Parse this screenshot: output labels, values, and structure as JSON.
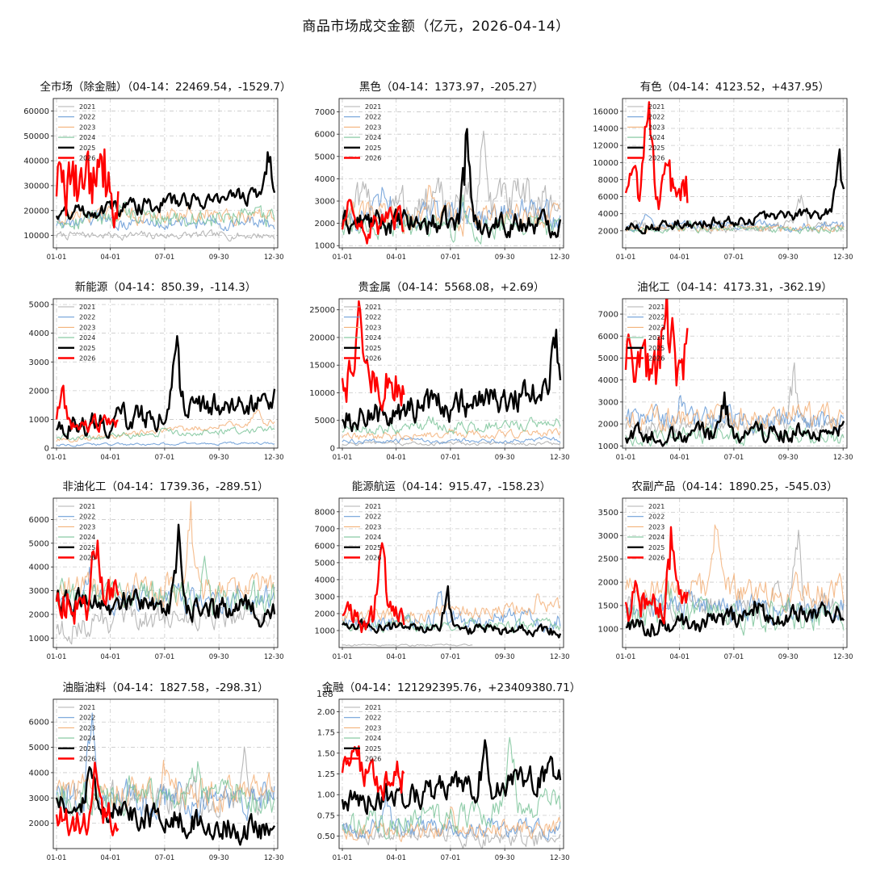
{
  "title": "商品市场成交金额（亿元，2026-04-14）",
  "x_tick_labels": [
    "01-01",
    "04-01",
    "07-01",
    "09-30",
    "12-30"
  ],
  "legend": [
    "2021",
    "2022",
    "2023",
    "2024",
    "2025",
    "2026"
  ],
  "series_colors": {
    "2021": "#b0b0b0",
    "2022": "#6fa0d8",
    "2023": "#f3b27a",
    "2024": "#7cc49a",
    "2025": "#000000",
    "2026": "#ff0000"
  },
  "chart_data": [
    {
      "type": "line",
      "title": "全市场（除金融）（04-14：22469.54，-1529.7）",
      "ylim": [
        5000,
        65000
      ],
      "yticks": [
        10000,
        20000,
        30000,
        40000,
        50000,
        60000
      ],
      "ytick_labels": [
        "10000",
        "20000",
        "30000",
        "40000",
        "50000",
        "60000"
      ],
      "sci_label": "",
      "series": [
        {
          "name": "2021",
          "base": 10000,
          "amp": 1500,
          "drift": 0,
          "spike_pos": 0.1,
          "spike_h": 0
        },
        {
          "name": "2022",
          "base": 15000,
          "amp": 2500,
          "drift": 0,
          "spike_pos": 0.2,
          "spike_h": 5000
        },
        {
          "name": "2023",
          "base": 18000,
          "amp": 3000,
          "drift": 0,
          "spike_pos": 0.6,
          "spike_h": 4000
        },
        {
          "name": "2024",
          "base": 17000,
          "amp": 3500,
          "drift": 0,
          "spike_pos": 0.3,
          "spike_h": 6000
        },
        {
          "name": "2025",
          "base": 19000,
          "amp": 3000,
          "drift": 8000,
          "spike_pos": 0.97,
          "spike_h": 20000
        },
        {
          "name": "2026",
          "base": 30000,
          "amp": 12000,
          "drift": -8000,
          "spike_pos": 0.2,
          "spike_h": 30000,
          "end": 0.29
        }
      ]
    },
    {
      "type": "line",
      "title": "黑色（04-14：1373.97，-205.27）",
      "ylim": [
        900,
        7600
      ],
      "yticks": [
        1000,
        2000,
        3000,
        4000,
        5000,
        6000,
        7000
      ],
      "ytick_labels": [
        "1000",
        "2000",
        "3000",
        "4000",
        "5000",
        "6000",
        "7000"
      ],
      "sci_label": "",
      "series": [
        {
          "name": "2021",
          "base": 2600,
          "amp": 900,
          "drift": 400,
          "spike_pos": 0.65,
          "spike_h": 4000
        },
        {
          "name": "2022",
          "base": 2400,
          "amp": 600,
          "drift": 0,
          "spike_pos": 0.2,
          "spike_h": 1800
        },
        {
          "name": "2023",
          "base": 2200,
          "amp": 600,
          "drift": 0,
          "spike_pos": 0.4,
          "spike_h": 1500
        },
        {
          "name": "2024",
          "base": 1900,
          "amp": 500,
          "drift": 0,
          "spike_pos": 0.55,
          "spike_h": 1200
        },
        {
          "name": "2025",
          "base": 2000,
          "amp": 500,
          "drift": 0,
          "spike_pos": 0.57,
          "spike_h": 5500
        },
        {
          "name": "2026",
          "base": 1900,
          "amp": 600,
          "drift": 0,
          "spike_pos": 0.04,
          "spike_h": 1900,
          "end": 0.29
        }
      ]
    },
    {
      "type": "line",
      "title": "有色（04-14：4123.52，+437.95）",
      "ylim": [
        0,
        17500
      ],
      "yticks": [
        2000,
        4000,
        6000,
        8000,
        10000,
        12000,
        14000,
        16000
      ],
      "ytick_labels": [
        "2000",
        "4000",
        "6000",
        "8000",
        "10000",
        "12000",
        "14000",
        "16000"
      ],
      "sci_label": "",
      "series": [
        {
          "name": "2021",
          "base": 2500,
          "amp": 600,
          "drift": 0,
          "spike_pos": 0.8,
          "spike_h": 4000
        },
        {
          "name": "2022",
          "base": 2600,
          "amp": 500,
          "drift": 0,
          "spike_pos": 0.1,
          "spike_h": 1500
        },
        {
          "name": "2023",
          "base": 2300,
          "amp": 400,
          "drift": 0,
          "spike_pos": 0.5,
          "spike_h": 800
        },
        {
          "name": "2024",
          "base": 2200,
          "amp": 400,
          "drift": 0,
          "spike_pos": 0.3,
          "spike_h": 700
        },
        {
          "name": "2025",
          "base": 2200,
          "amp": 600,
          "drift": 2000,
          "spike_pos": 0.98,
          "spike_h": 8000
        },
        {
          "name": "2026",
          "base": 7000,
          "amp": 2500,
          "drift": -2500,
          "spike_pos": 0.1,
          "spike_h": 11000,
          "end": 0.29
        }
      ]
    },
    {
      "type": "line",
      "title": "新能源（04-14：850.39，-114.3）",
      "ylim": [
        0,
        5200
      ],
      "yticks": [
        0,
        1000,
        2000,
        3000,
        4000,
        5000
      ],
      "ytick_labels": [
        "0",
        "1000",
        "2000",
        "3000",
        "4000",
        "5000"
      ],
      "sci_label": "",
      "series": [
        {
          "name": "2021",
          "base": 0,
          "amp": 0,
          "drift": 0,
          "spike_pos": 0.1,
          "spike_h": 0
        },
        {
          "name": "2022",
          "base": 120,
          "amp": 40,
          "drift": 50,
          "spike_pos": 0.2,
          "spike_h": 0
        },
        {
          "name": "2023",
          "base": 250,
          "amp": 100,
          "drift": 700,
          "spike_pos": 0.92,
          "spike_h": 700
        },
        {
          "name": "2024",
          "base": 350,
          "amp": 100,
          "drift": 300,
          "spike_pos": 0.5,
          "spike_h": 200
        },
        {
          "name": "2025",
          "base": 700,
          "amp": 400,
          "drift": 1000,
          "spike_pos": 0.55,
          "spike_h": 3800
        },
        {
          "name": "2026",
          "base": 900,
          "amp": 250,
          "drift": -200,
          "spike_pos": 0.03,
          "spike_h": 1300,
          "end": 0.29
        }
      ]
    },
    {
      "type": "line",
      "title": "贵金属（04-14：5568.08，+2.69）",
      "ylim": [
        0,
        27000
      ],
      "yticks": [
        0,
        5000,
        10000,
        15000,
        20000,
        25000
      ],
      "ytick_labels": [
        "0",
        "5000",
        "10000",
        "15000",
        "20000",
        "25000"
      ],
      "sci_label": "",
      "series": [
        {
          "name": "2021",
          "base": 800,
          "amp": 300,
          "drift": 0,
          "spike_pos": 0.1,
          "spike_h": 0
        },
        {
          "name": "2022",
          "base": 1200,
          "amp": 400,
          "drift": 300,
          "spike_pos": 0.3,
          "spike_h": 500
        },
        {
          "name": "2023",
          "base": 2000,
          "amp": 700,
          "drift": 800,
          "spike_pos": 0.5,
          "spike_h": 1200
        },
        {
          "name": "2024",
          "base": 3000,
          "amp": 1000,
          "drift": 1500,
          "spike_pos": 0.4,
          "spike_h": 2500
        },
        {
          "name": "2025",
          "base": 5500,
          "amp": 2500,
          "drift": 5000,
          "spike_pos": 0.98,
          "spike_h": 13000
        },
        {
          "name": "2026",
          "base": 13000,
          "amp": 4000,
          "drift": -5000,
          "spike_pos": 0.08,
          "spike_h": 13000,
          "end": 0.29
        }
      ]
    },
    {
      "type": "line",
      "title": "油化工（04-14：4173.31，-362.19）",
      "ylim": [
        900,
        7700
      ],
      "yticks": [
        1000,
        2000,
        3000,
        4000,
        5000,
        6000,
        7000
      ],
      "ytick_labels": [
        "1000",
        "2000",
        "3000",
        "4000",
        "5000",
        "6000",
        "7000"
      ],
      "sci_label": "",
      "series": [
        {
          "name": "2021",
          "base": 1800,
          "amp": 400,
          "drift": 200,
          "spike_pos": 0.77,
          "spike_h": 3000
        },
        {
          "name": "2022",
          "base": 2200,
          "amp": 500,
          "drift": 0,
          "spike_pos": 0.25,
          "spike_h": 1000
        },
        {
          "name": "2023",
          "base": 2300,
          "amp": 500,
          "drift": 0,
          "spike_pos": 0.75,
          "spike_h": 900
        },
        {
          "name": "2024",
          "base": 1500,
          "amp": 400,
          "drift": 0,
          "spike_pos": 0.5,
          "spike_h": 500
        },
        {
          "name": "2025",
          "base": 1400,
          "amp": 400,
          "drift": 300,
          "spike_pos": 0.45,
          "spike_h": 1800
        },
        {
          "name": "2026",
          "base": 4500,
          "amp": 1500,
          "drift": 1500,
          "spike_pos": 0.19,
          "spike_h": 3000,
          "end": 0.29
        }
      ]
    },
    {
      "type": "line",
      "title": "非油化工（04-14：1739.36，-289.51）",
      "ylim": [
        600,
        6900
      ],
      "yticks": [
        1000,
        2000,
        3000,
        4000,
        5000,
        6000
      ],
      "ytick_labels": [
        "1000",
        "2000",
        "3000",
        "4000",
        "5000",
        "6000"
      ],
      "sci_label": "",
      "series": [
        {
          "name": "2021",
          "base": 1400,
          "amp": 500,
          "drift": 800,
          "spike_pos": 0.2,
          "spike_h": 800
        },
        {
          "name": "2022",
          "base": 2600,
          "amp": 500,
          "drift": 0,
          "spike_pos": 0.15,
          "spike_h": 1500
        },
        {
          "name": "2023",
          "base": 3000,
          "amp": 600,
          "drift": 0,
          "spike_pos": 0.62,
          "spike_h": 3300
        },
        {
          "name": "2024",
          "base": 2800,
          "amp": 600,
          "drift": 0,
          "spike_pos": 0.68,
          "spike_h": 2200
        },
        {
          "name": "2025",
          "base": 2600,
          "amp": 500,
          "drift": -500,
          "spike_pos": 0.56,
          "spike_h": 3200
        },
        {
          "name": "2026",
          "base": 2500,
          "amp": 800,
          "drift": 0,
          "spike_pos": 0.18,
          "spike_h": 3000,
          "end": 0.29
        }
      ]
    },
    {
      "type": "line",
      "title": "能源航运（04-14：915.47，-158.23）",
      "ylim": [
        0,
        8800
      ],
      "yticks": [
        1000,
        2000,
        3000,
        4000,
        5000,
        6000,
        7000,
        8000
      ],
      "ytick_labels": [
        "1000",
        "2000",
        "3000",
        "4000",
        "5000",
        "6000",
        "7000",
        "8000"
      ],
      "sci_label": "",
      "series": [
        {
          "name": "2021",
          "base": 150,
          "amp": 50,
          "drift": 0,
          "spike_pos": 0.1,
          "spike_h": 0,
          "end": 0.6
        },
        {
          "name": "2022",
          "base": 1600,
          "amp": 500,
          "drift": 0,
          "spike_pos": 0.45,
          "spike_h": 2000
        },
        {
          "name": "2023",
          "base": 1700,
          "amp": 400,
          "drift": 700,
          "spike_pos": 0.9,
          "spike_h": 700
        },
        {
          "name": "2024",
          "base": 1300,
          "amp": 300,
          "drift": 0,
          "spike_pos": 0.3,
          "spike_h": 700
        },
        {
          "name": "2025",
          "base": 1300,
          "amp": 300,
          "drift": -400,
          "spike_pos": 0.48,
          "spike_h": 3000
        },
        {
          "name": "2026",
          "base": 1800,
          "amp": 800,
          "drift": 0,
          "spike_pos": 0.18,
          "spike_h": 6000,
          "end": 0.29
        }
      ]
    },
    {
      "type": "line",
      "title": "农副产品（04-14：1890.25，-545.03）",
      "ylim": [
        600,
        3800
      ],
      "yticks": [
        1000,
        1500,
        2000,
        2500,
        3000,
        3500
      ],
      "ytick_labels": [
        "1000",
        "1500",
        "2000",
        "2500",
        "3000",
        "3500"
      ],
      "sci_label": "",
      "series": [
        {
          "name": "2021",
          "base": 1500,
          "amp": 300,
          "drift": 0,
          "spike_pos": 0.79,
          "spike_h": 1700
        },
        {
          "name": "2022",
          "base": 1450,
          "amp": 250,
          "drift": 0,
          "spike_pos": 0.3,
          "spike_h": 500
        },
        {
          "name": "2023",
          "base": 1800,
          "amp": 300,
          "drift": 0,
          "spike_pos": 0.42,
          "spike_h": 1800
        },
        {
          "name": "2024",
          "base": 1300,
          "amp": 300,
          "drift": 0,
          "spike_pos": 0.2,
          "spike_h": 400
        },
        {
          "name": "2025",
          "base": 1000,
          "amp": 200,
          "drift": 400,
          "spike_pos": 0.6,
          "spike_h": 400
        },
        {
          "name": "2026",
          "base": 1500,
          "amp": 400,
          "drift": 600,
          "spike_pos": 0.21,
          "spike_h": 1600,
          "end": 0.29
        }
      ]
    },
    {
      "type": "line",
      "title": "油脂油料（04-14：1827.58，-298.31）",
      "ylim": [
        1000,
        6900
      ],
      "yticks": [
        2000,
        3000,
        4000,
        5000,
        6000
      ],
      "ytick_labels": [
        "2000",
        "3000",
        "4000",
        "5000",
        "6000"
      ],
      "sci_label": "",
      "series": [
        {
          "name": "2021",
          "base": 3000,
          "amp": 600,
          "drift": 0,
          "spike_pos": 0.86,
          "spike_h": 2200
        },
        {
          "name": "2022",
          "base": 3000,
          "amp": 600,
          "drift": 0,
          "spike_pos": 0.16,
          "spike_h": 3300
        },
        {
          "name": "2023",
          "base": 3200,
          "amp": 600,
          "drift": 0,
          "spike_pos": 0.5,
          "spike_h": 1200
        },
        {
          "name": "2024",
          "base": 3100,
          "amp": 600,
          "drift": 0,
          "spike_pos": 0.65,
          "spike_h": 2000
        },
        {
          "name": "2025",
          "base": 2900,
          "amp": 500,
          "drift": -1300,
          "spike_pos": 0.16,
          "spike_h": 1800
        },
        {
          "name": "2026",
          "base": 2200,
          "amp": 600,
          "drift": 0,
          "spike_pos": 0.18,
          "spike_h": 2600,
          "end": 0.29
        }
      ]
    },
    {
      "type": "line",
      "title": "金融（04-14：121292395.76，+23409380.71）",
      "ylim": [
        0.35,
        2.15
      ],
      "yticks": [
        0.5,
        0.75,
        1.0,
        1.25,
        1.5,
        1.75,
        2.0
      ],
      "ytick_labels": [
        "0.50",
        "0.75",
        "1.00",
        "1.25",
        "1.50",
        "1.75",
        "2.00"
      ],
      "sci_label": "1e8",
      "series": [
        {
          "name": "2021",
          "base": 0.55,
          "amp": 0.1,
          "drift": -0.1,
          "spike_pos": 0.3,
          "spike_h": 0.2
        },
        {
          "name": "2022",
          "base": 0.6,
          "amp": 0.1,
          "drift": 0,
          "spike_pos": 0.2,
          "spike_h": 0.4
        },
        {
          "name": "2023",
          "base": 0.55,
          "amp": 0.1,
          "drift": 0.05,
          "spike_pos": 0.5,
          "spike_h": 0.3
        },
        {
          "name": "2024",
          "base": 0.6,
          "amp": 0.15,
          "drift": 0.3,
          "spike_pos": 0.77,
          "spike_h": 1.2
        },
        {
          "name": "2025",
          "base": 0.9,
          "amp": 0.15,
          "drift": 0.35,
          "spike_pos": 0.65,
          "spike_h": 0.5
        },
        {
          "name": "2026",
          "base": 1.2,
          "amp": 0.2,
          "drift": 0,
          "spike_pos": 0.06,
          "spike_h": 0.7,
          "end": 0.29
        }
      ]
    }
  ]
}
